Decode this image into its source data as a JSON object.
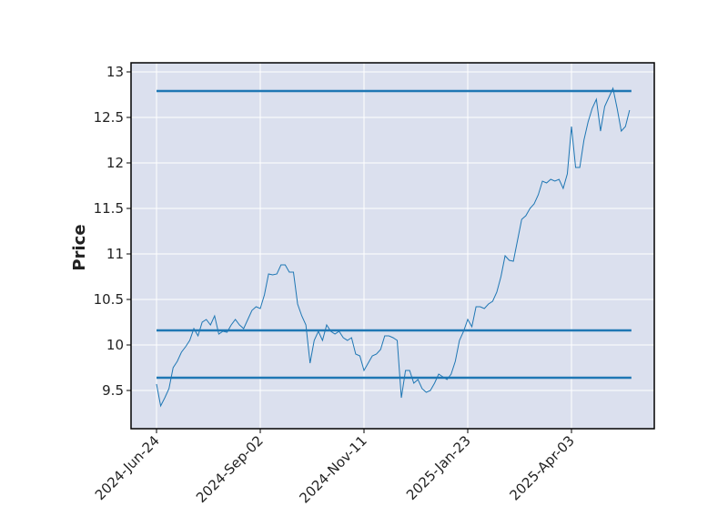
{
  "chart_data": {
    "type": "line",
    "y_label": "Price",
    "categories": [
      "2024-Jun-24",
      null,
      null,
      null,
      null,
      null,
      null,
      null,
      null,
      null,
      null,
      null,
      null,
      null,
      null,
      null,
      null,
      null,
      null,
      null,
      null,
      null,
      null,
      null,
      null,
      "2024-Sep-02",
      null,
      null,
      null,
      null,
      null,
      null,
      null,
      null,
      null,
      null,
      null,
      null,
      null,
      null,
      null,
      null,
      null,
      null,
      null,
      null,
      null,
      null,
      null,
      null,
      "2024-Nov-11",
      null,
      null,
      null,
      null,
      null,
      null,
      null,
      null,
      null,
      null,
      null,
      null,
      null,
      null,
      null,
      null,
      null,
      null,
      null,
      null,
      null,
      null,
      null,
      null,
      "2025-Jan-23",
      null,
      null,
      null,
      null,
      null,
      null,
      null,
      null,
      null,
      null,
      null,
      null,
      null,
      null,
      null,
      null,
      null,
      null,
      null,
      null,
      null,
      null,
      null,
      null,
      "2025-Apr-03",
      null,
      null,
      null,
      null,
      null,
      null,
      null,
      null,
      null,
      null,
      null,
      null,
      null,
      null
    ],
    "series": [
      {
        "color": "#1f77b4",
        "values": [
          9.57,
          9.33,
          9.42,
          9.52,
          9.75,
          9.82,
          9.92,
          9.98,
          10.05,
          10.18,
          10.1,
          10.25,
          10.28,
          10.22,
          10.32,
          10.12,
          10.15,
          10.14,
          10.22,
          10.28,
          10.22,
          10.18,
          10.28,
          10.38,
          10.42,
          10.4,
          10.55,
          10.78,
          10.77,
          10.78,
          10.88,
          10.88,
          10.8,
          10.8,
          10.45,
          10.32,
          10.22,
          9.8,
          10.05,
          10.15,
          10.05,
          10.22,
          10.15,
          10.12,
          10.15,
          10.08,
          10.05,
          10.08,
          9.9,
          9.88,
          9.72,
          9.8,
          9.88,
          9.9,
          9.95,
          10.1,
          10.1,
          10.08,
          10.05,
          9.42,
          9.72,
          9.72,
          9.58,
          9.62,
          9.52,
          9.48,
          9.5,
          9.58,
          9.68,
          9.65,
          9.62,
          9.68,
          9.82,
          10.05,
          10.15,
          10.28,
          10.2,
          10.42,
          10.42,
          10.4,
          10.45,
          10.48,
          10.58,
          10.75,
          10.98,
          10.93,
          10.92,
          11.15,
          11.38,
          11.42,
          11.5,
          11.55,
          11.65,
          11.8,
          11.78,
          11.82,
          11.8,
          11.82,
          11.72,
          11.88,
          12.4,
          11.95,
          11.95,
          12.25,
          12.45,
          12.6,
          12.7,
          12.35,
          12.62,
          12.72,
          12.82,
          12.6,
          12.35,
          12.4,
          12.58
        ]
      }
    ],
    "hlines": [
      {
        "value": 12.79,
        "color": "#1f77b4"
      },
      {
        "value": 10.16,
        "color": "#1f77b4"
      },
      {
        "value": 9.64,
        "color": "#1f77b4"
      }
    ],
    "ylim": [
      9.08,
      13.1
    ],
    "yticks": [
      9.5,
      10.0,
      10.5,
      11.0,
      11.5,
      12.0,
      12.5,
      13.0
    ],
    "grid": true
  }
}
